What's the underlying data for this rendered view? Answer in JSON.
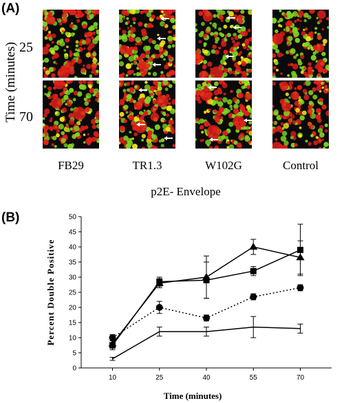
{
  "panel_a": {
    "label": "(A)",
    "row_axis_label": "Time (minutes)",
    "row_labels": [
      "25",
      "70"
    ],
    "column_labels": [
      "FB29",
      "TR1.3",
      "W102G",
      "Control"
    ],
    "group_label": "p2E- Envelope",
    "colors": {
      "red": "#e0201a",
      "green": "#7ed321",
      "yellow": "#f2e81c",
      "background": "#0a0a0a",
      "arrow": "#ffffff"
    }
  },
  "panel_b": {
    "label": "(B)"
  },
  "chart_data": {
    "type": "line",
    "title": "",
    "xlabel": "Time (minutes)",
    "ylabel": "Percent Double Positive",
    "x": [
      10,
      25,
      40,
      55,
      70
    ],
    "xticks": [
      "10",
      "25",
      "40",
      "55",
      "70"
    ],
    "ylim": [
      0,
      50
    ],
    "yticks": [
      "0",
      "5",
      "10",
      "15",
      "20",
      "25",
      "30",
      "35",
      "40",
      "45",
      "50"
    ],
    "grid": false,
    "series": [
      {
        "marker": "triangle",
        "line": "solid",
        "values": [
          8,
          28,
          30,
          40,
          36.5
        ],
        "errors": [
          1.5,
          1.5,
          7,
          2.5,
          5.5
        ]
      },
      {
        "marker": "square",
        "line": "solid",
        "values": [
          7.5,
          28.5,
          29,
          32,
          39
        ],
        "errors": [
          1.5,
          1.5,
          6,
          1.5,
          8.5
        ]
      },
      {
        "marker": "circle",
        "line": "dotted",
        "values": [
          10,
          20,
          16.5,
          23.5,
          26.5
        ],
        "errors": [
          1,
          2,
          1,
          1,
          1
        ]
      },
      {
        "marker": "none",
        "line": "solid",
        "values": [
          3,
          12,
          12,
          13.5,
          13
        ],
        "errors": [
          0.5,
          1.5,
          1.5,
          3.5,
          1.5
        ]
      }
    ]
  }
}
